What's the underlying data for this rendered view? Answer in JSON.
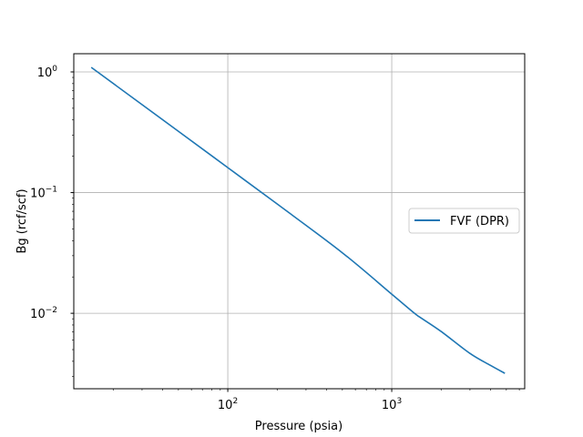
{
  "chart_data": {
    "type": "line",
    "title": "",
    "xlabel": "Pressure (psia)",
    "ylabel": "Bg (rcf/scf)",
    "xscale": "log",
    "yscale": "log",
    "xlim": [
      11.5,
      6470
    ],
    "ylim": [
      0.00237,
      1.415
    ],
    "grid": true,
    "legend_position": "center-right",
    "x_ticks": [
      {
        "value": 100,
        "base": "10",
        "exp": "2"
      },
      {
        "value": 1000,
        "base": "10",
        "exp": "3"
      }
    ],
    "y_ticks": [
      {
        "value": 1,
        "base": "10",
        "exp": "0"
      },
      {
        "value": 0.1,
        "base": "10",
        "exp": "−1"
      },
      {
        "value": 0.01,
        "base": "10",
        "exp": "−2"
      }
    ],
    "series": [
      {
        "name": "FVF (DPR)",
        "color": "#1f77b4",
        "x": [
          14.7,
          50,
          100,
          200,
          500,
          1000,
          1377,
          1500,
          2000,
          3000,
          4000,
          4900
        ],
        "y": [
          1.09,
          0.322,
          0.161,
          0.0805,
          0.0317,
          0.0144,
          0.01,
          0.0092,
          0.00707,
          0.00465,
          0.0037,
          0.00318
        ]
      }
    ]
  }
}
